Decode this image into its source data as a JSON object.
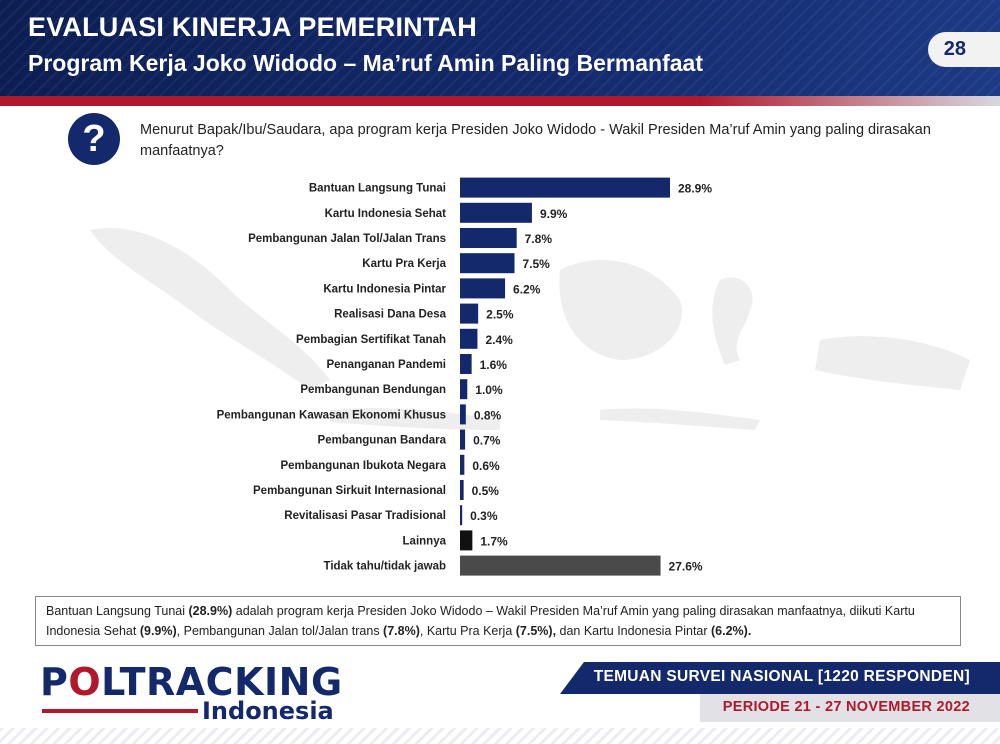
{
  "header": {
    "title": "EVALUASI KINERJA PEMERINTAH",
    "subtitle": "Program Kerja Joko Widodo – Ma’ruf Amin Paling Bermanfaat",
    "page_number": "28"
  },
  "question": {
    "icon": "question-mark-icon",
    "text": "Menurut Bapak/Ibu/Saudara, apa program kerja Presiden Joko Widodo - Wakil Presiden Ma’ruf Amin yang paling dirasakan manfaatnya?"
  },
  "chart_data": {
    "type": "bar",
    "orientation": "horizontal",
    "categories": [
      "Bantuan Langsung Tunai",
      "Kartu Indonesia Sehat",
      "Pembangunan Jalan Tol/Jalan Trans",
      "Kartu Pra Kerja",
      "Kartu Indonesia Pintar",
      "Realisasi Dana Desa",
      "Pembagian Sertifikat Tanah",
      "Penanganan Pandemi",
      "Pembangunan Bendungan",
      "Pembangunan Kawasan Ekonomi Khusus",
      "Pembangunan Bandara",
      "Pembangunan Ibukota Negara",
      "Pembangunan Sirkuit Internasional",
      "Revitalisasi Pasar Tradisional",
      "Lainnya",
      "Tidak tahu/tidak jawab"
    ],
    "values": [
      28.9,
      9.9,
      7.8,
      7.5,
      6.2,
      2.5,
      2.4,
      1.6,
      1.0,
      0.8,
      0.7,
      0.6,
      0.5,
      0.3,
      1.7,
      27.6
    ],
    "value_labels": [
      "28.9%",
      "9.9%",
      "7.8%",
      "7.5%",
      "6.2%",
      "2.5%",
      "2.4%",
      "1.6%",
      "1.0%",
      "0.8%",
      "0.7%",
      "0.6%",
      "0.5%",
      "0.3%",
      "1.7%",
      "27.6%"
    ],
    "bar_colors": [
      "#13296b",
      "#13296b",
      "#13296b",
      "#13296b",
      "#13296b",
      "#13296b",
      "#13296b",
      "#13296b",
      "#13296b",
      "#13296b",
      "#13296b",
      "#13296b",
      "#13296b",
      "#13296b",
      "#111111",
      "#4a4a4a"
    ],
    "xlim": [
      0,
      30
    ],
    "grid": false,
    "legend": "none"
  },
  "summary": {
    "t1": "Bantuan Langsung Tunai ",
    "b1": "(28.9%)",
    "t2": " adalah program kerja Presiden Joko Widodo – Wakil Presiden Ma’ruf Amin yang paling dirasakan manfaatnya, diikuti Kartu Indonesia Sehat ",
    "b2": "(9.9%)",
    "t3": ", Pembangunan Jalan tol/Jalan trans ",
    "b3": "(7.8%)",
    "t4": ", Kartu Pra Kerja ",
    "b4": "(7.5%),",
    "t5": " dan Kartu Indonesia Pintar ",
    "b5": "(6.2%)."
  },
  "footer": {
    "logo_o": "O",
    "logo_rest": "LTRACKING",
    "logo_p": "P",
    "logo_sub": "Indonesia",
    "survey": "TEMUAN SURVEI NASIONAL [1220 RESPONDEN]",
    "period": "PERIODE 21 - 27 NOVEMBER 2022"
  },
  "colors": {
    "navy": "#13296b",
    "red": "#b0192c",
    "gray_bar": "#4a4a4a"
  }
}
